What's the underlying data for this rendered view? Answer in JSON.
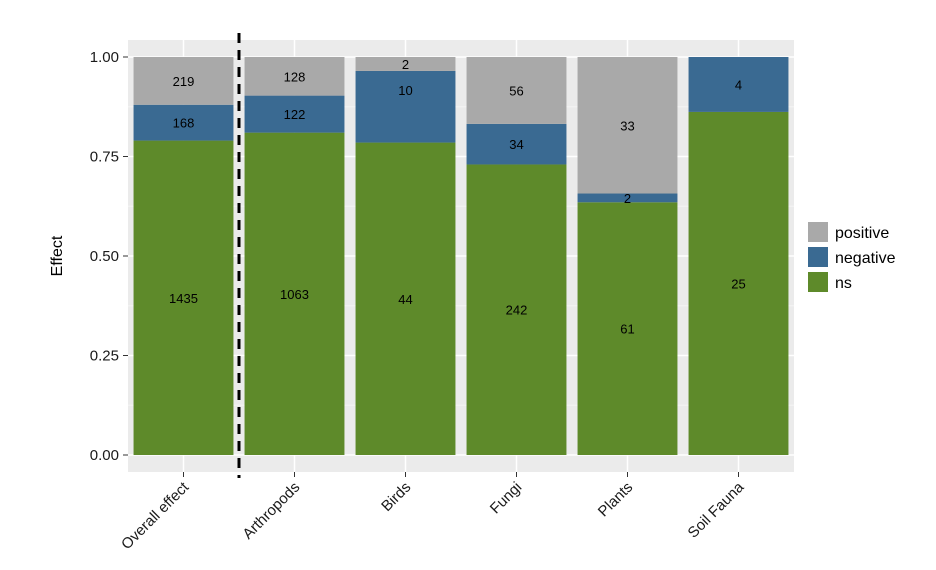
{
  "chart_data": {
    "type": "bar",
    "stacked": true,
    "ylabel": "Effect",
    "xlabel": "",
    "ylim": [
      0,
      1.0
    ],
    "yticks": [
      "0.00",
      "0.25",
      "0.50",
      "0.75",
      "1.00"
    ],
    "grid": true,
    "legend_position": "right",
    "categories": [
      "Overall effect",
      "Arthropods",
      "Birds",
      "Fungi",
      "Plants",
      "Soil Fauna"
    ],
    "series": [
      {
        "name": "ns",
        "color": "#5e8a2a",
        "values": [
          0.79,
          0.81,
          0.785,
          0.73,
          0.635,
          0.862
        ],
        "labels": [
          "1435",
          "1063",
          "44",
          "242",
          "61",
          "25"
        ]
      },
      {
        "name": "negative",
        "color": "#3a6a92",
        "values": [
          0.09,
          0.093,
          0.18,
          0.102,
          0.022,
          0.138
        ],
        "labels": [
          "168",
          "122",
          "10",
          "34",
          "2",
          "4"
        ]
      },
      {
        "name": "positive",
        "color": "#a9a9a9",
        "values": [
          0.12,
          0.097,
          0.035,
          0.168,
          0.343,
          0.0
        ],
        "labels": [
          "219",
          "128",
          "2",
          "56",
          "33",
          ""
        ]
      }
    ],
    "legend": [
      "positive",
      "negative",
      "ns"
    ],
    "divider_after_category": 0
  }
}
